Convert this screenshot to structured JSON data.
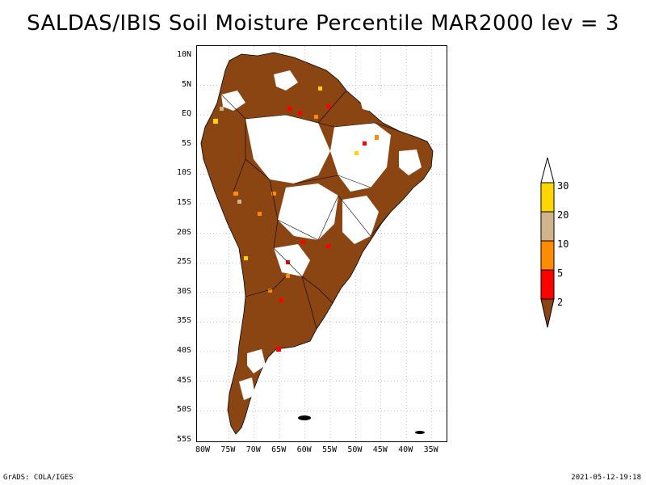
{
  "title": "SALDAS/IBIS Soil Moisture Percentile MAR2000 lev = 3",
  "map": {
    "lat_labels": [
      "10N",
      "5N",
      "EQ",
      "5S",
      "10S",
      "15S",
      "20S",
      "25S",
      "30S",
      "35S",
      "40S",
      "45S",
      "50S",
      "55S"
    ],
    "lon_labels": [
      "80W",
      "75W",
      "70W",
      "65W",
      "60W",
      "55W",
      "50W",
      "45W",
      "40W",
      "35W"
    ]
  },
  "legend": {
    "labels": [
      "30",
      "20",
      "10",
      "5",
      "2"
    ],
    "colors": {
      "above_30": "#ffffff",
      "20_30": "#ffd700",
      "10_20": "#d2b48c",
      "5_10": "#ff8c00",
      "2_5": "#ff0000",
      "below_2": "#8b4513"
    }
  },
  "footer": {
    "left": "GrADS: COLA/IGES",
    "right": "2021-05-12-19:18"
  }
}
